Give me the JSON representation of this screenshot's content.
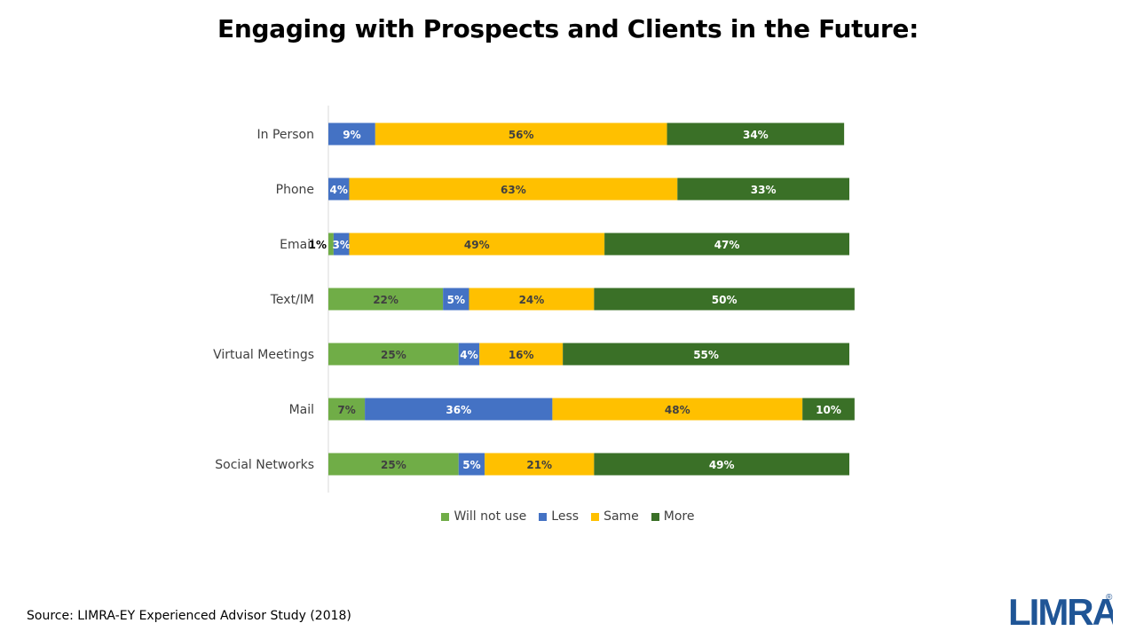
{
  "chart_data": {
    "type": "bar",
    "orientation": "horizontal",
    "stacked": true,
    "title": "Engaging with Prospects and Clients in the Future:",
    "categories": [
      "In Person",
      "Phone",
      "Email",
      "Text/IM",
      "Virtual Meetings",
      "Mail",
      "Social Networks"
    ],
    "series": [
      {
        "name": "Will not use",
        "color": "#70ad47",
        "values": [
          0,
          0,
          1,
          22,
          25,
          7,
          25
        ],
        "labels": [
          "",
          "",
          "1%",
          "22%",
          "25%",
          "7%",
          "25%"
        ]
      },
      {
        "name": "Less",
        "color": "#4472c4",
        "values": [
          9,
          4,
          3,
          5,
          4,
          36,
          5
        ],
        "labels": [
          "9%",
          "4%",
          "3%",
          "5%",
          "4%",
          "36%",
          "5%"
        ]
      },
      {
        "name": "Same",
        "color": "#ffc000",
        "values": [
          56,
          63,
          49,
          24,
          16,
          48,
          21
        ],
        "labels": [
          "56%",
          "63%",
          "49%",
          "24%",
          "16%",
          "48%",
          "21%"
        ]
      },
      {
        "name": "More",
        "color": "#3a7027",
        "values": [
          34,
          33,
          47,
          50,
          55,
          10,
          49
        ],
        "labels": [
          "34%",
          "33%",
          "47%",
          "50%",
          "55%",
          "10%",
          "49%"
        ]
      }
    ],
    "xlim": [
      0,
      100
    ],
    "grid": false,
    "legend": "bottom"
  },
  "source": "Source: LIMRA-EY Experienced Advisor Study (2018)",
  "logo": {
    "text": "LIMRA",
    "mark": "®",
    "color": "#1f5596"
  }
}
